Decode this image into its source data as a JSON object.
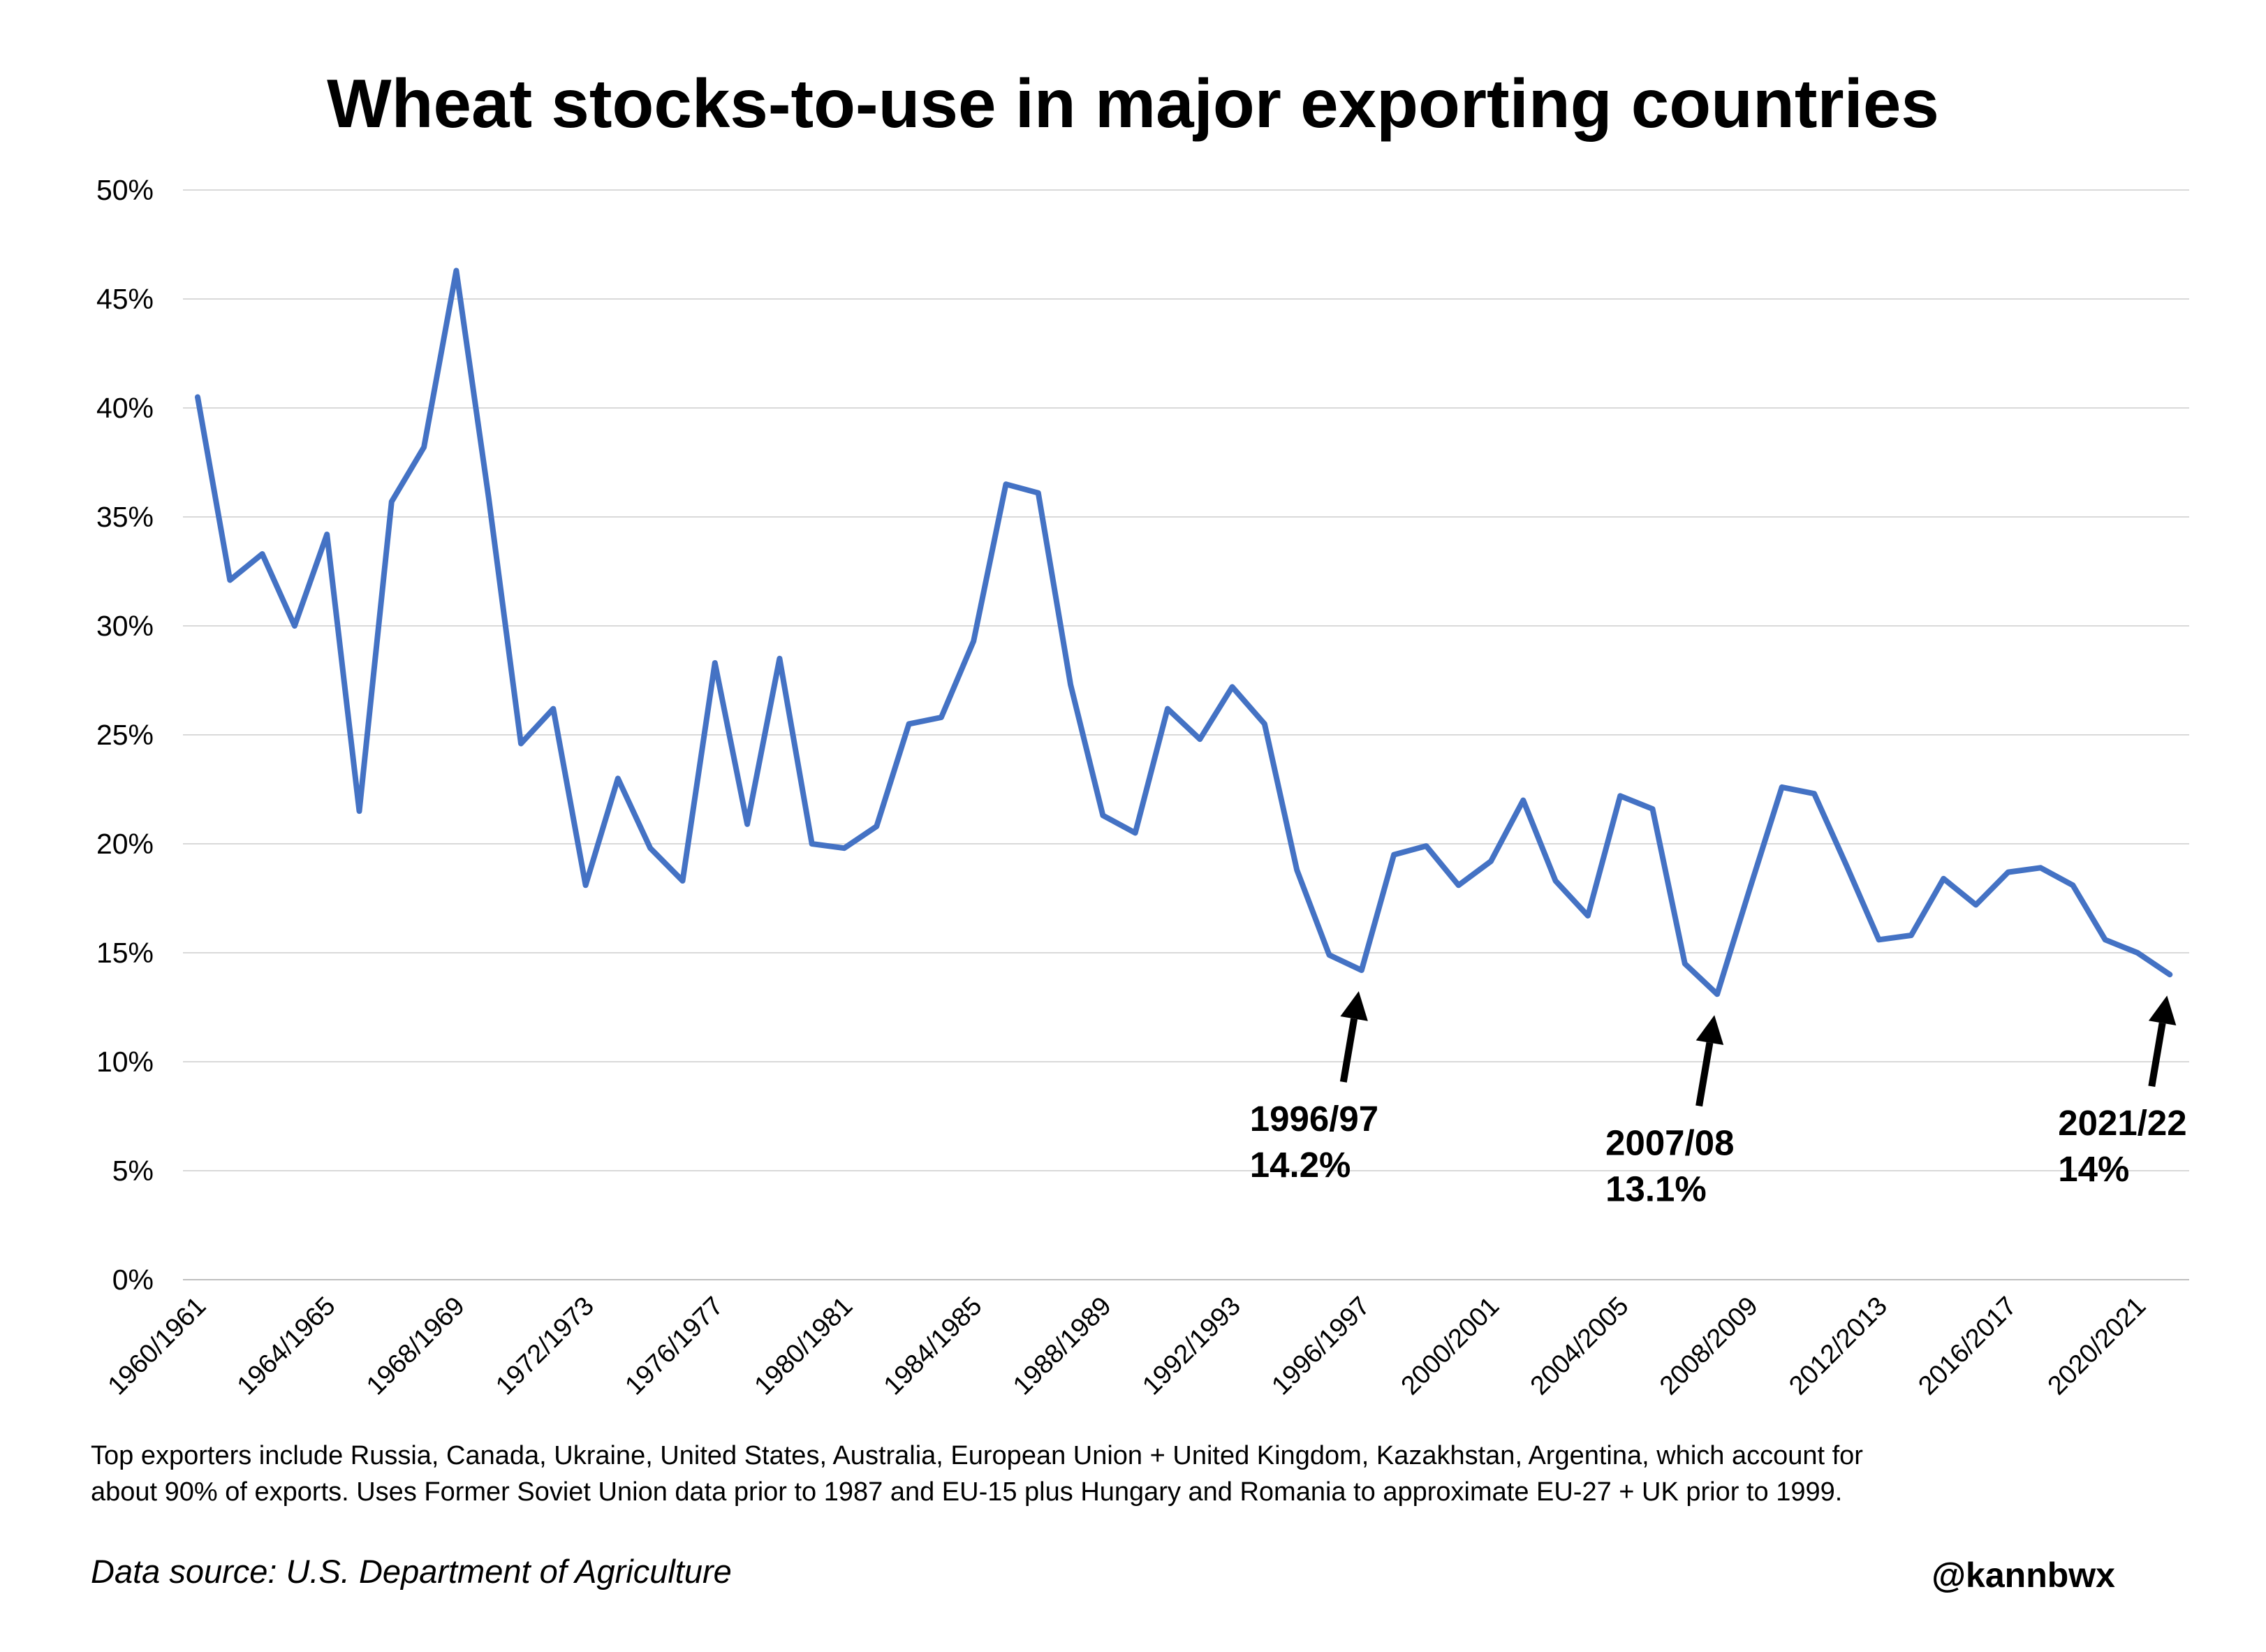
{
  "title": "Wheat stocks-to-use in major exporting countries",
  "footnote": {
    "line1": "Top exporters include Russia, Canada, Ukraine, United States, Australia, European Union + United Kingdom, Kazakhstan, Argentina, which account for",
    "line2": "about 90% of exports. Uses Former Soviet Union data prior to 1987 and EU-15 plus Hungary and Romania to approximate EU-27 + UK prior to 1999."
  },
  "source": "Data source: U.S. Department of Agriculture",
  "handle": "@kannbwx",
  "chart_data": {
    "type": "line",
    "title": "Wheat stocks-to-use in major exporting countries",
    "xlabel": "",
    "ylabel": "",
    "ylim": [
      0,
      50
    ],
    "yticks": [
      "0%",
      "5%",
      "10%",
      "15%",
      "20%",
      "25%",
      "30%",
      "35%",
      "40%",
      "45%",
      "50%"
    ],
    "grid": true,
    "line_color": "#4472c4",
    "x_tick_labels": [
      "1960/1961",
      "1964/1965",
      "1968/1969",
      "1972/1973",
      "1976/1977",
      "1980/1981",
      "1984/1985",
      "1988/1989",
      "1992/1993",
      "1996/1997",
      "2000/2001",
      "2004/2005",
      "2008/2009",
      "2012/2013",
      "2016/2017",
      "2020/2021"
    ],
    "series": [
      {
        "name": "Stocks-to-use",
        "start_year": 1960,
        "values": [
          40.5,
          32.1,
          33.3,
          30.0,
          34.2,
          21.5,
          35.7,
          38.2,
          46.3,
          35.9,
          24.6,
          26.2,
          18.1,
          23.0,
          19.8,
          18.3,
          28.3,
          20.9,
          28.5,
          20.0,
          19.8,
          20.8,
          25.5,
          25.8,
          29.3,
          36.5,
          36.1,
          27.3,
          21.3,
          20.5,
          26.2,
          24.8,
          27.2,
          25.5,
          18.8,
          14.9,
          14.2,
          19.5,
          19.9,
          18.1,
          19.2,
          22.0,
          18.3,
          16.7,
          22.2,
          21.6,
          14.5,
          13.1,
          17.9,
          22.6,
          22.3,
          19.0,
          15.6,
          15.8,
          18.4,
          17.2,
          18.7,
          18.9,
          18.1,
          15.6,
          15.0,
          14.0
        ]
      }
    ],
    "annotations": [
      {
        "year_index": 36,
        "value": 14.2,
        "label": "1996/97",
        "value_label": "14.2%"
      },
      {
        "year_index": 47,
        "value": 13.1,
        "label": "2007/08",
        "value_label": "13.1%"
      },
      {
        "year_index": 61,
        "value": 14.0,
        "label": "2021/22",
        "value_label": "14%"
      }
    ]
  }
}
